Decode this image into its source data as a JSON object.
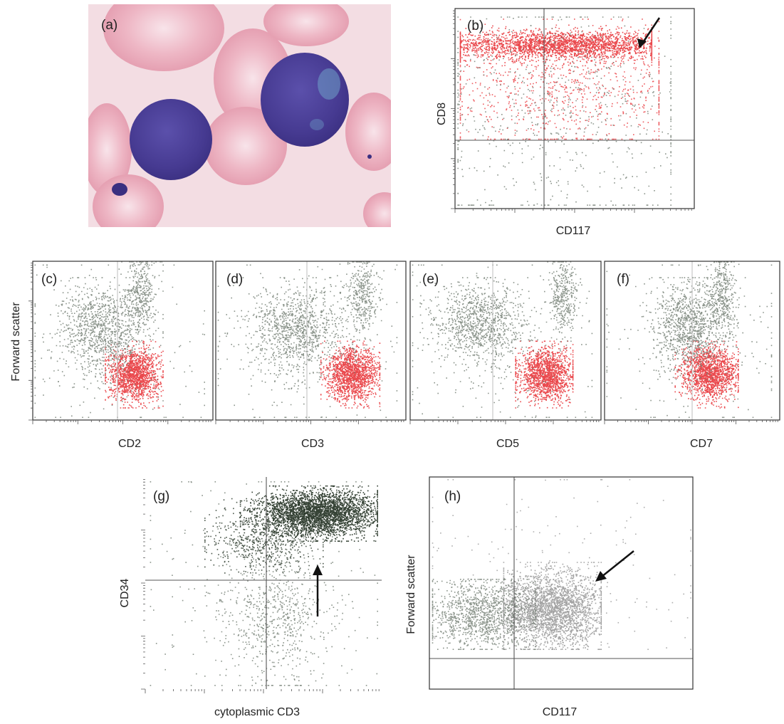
{
  "figure": {
    "colors": {
      "background": "#ffffff",
      "gated_population": "#e8353a",
      "other_events": "#6f7a6f",
      "dark_events": "#1f2e1f",
      "grey_events": "#9a9a9a",
      "frame": "#333333",
      "micrograph_background": "#f3dde3",
      "blast_nucleus": "#4a3f96",
      "red_cell": "#e8a6b5"
    },
    "panels": [
      {
        "id": "a",
        "label": "(a)",
        "kind": "micrograph",
        "chart_data": {
          "type": "image",
          "title": "",
          "content": "peripheral blood smear with two blast cells among red blood cells"
        }
      },
      {
        "id": "b",
        "label": "(b)",
        "kind": "flow",
        "chart_data": {
          "type": "scatter",
          "title": "",
          "xlabel": "CD117",
          "ylabel": "CD8",
          "xscale": "log",
          "yscale": "log",
          "xlim": [
            0,
            1
          ],
          "ylim": [
            0,
            1
          ],
          "gate": {
            "x": 0.42,
            "y": 0.39
          },
          "arrow": true,
          "grid": false,
          "series": [
            {
              "color_key": "gated_population",
              "n": 2600,
              "x_center": 0.45,
              "x_spread": 0.26,
              "y_center": 0.82,
              "y_spread": 0.035,
              "x_range": [
                0.02,
                0.82
              ],
              "y_range": [
                0.72,
                0.92
              ]
            },
            {
              "color_key": "gated_population",
              "n": 900,
              "x_center": 0.45,
              "x_spread": 0.28,
              "y_center": 0.6,
              "y_spread": 0.15,
              "x_range": [
                0.02,
                0.85
              ],
              "y_range": [
                0.35,
                0.95
              ]
            },
            {
              "color_key": "other_events",
              "n": 650,
              "x_center": 0.45,
              "x_spread": 0.3,
              "y_center": 0.45,
              "y_spread": 0.3,
              "x_range": [
                0.01,
                0.9
              ],
              "y_range": [
                0.02,
                0.96
              ]
            }
          ]
        }
      },
      {
        "id": "c",
        "label": "(c)",
        "kind": "flow",
        "chart_data": {
          "type": "scatter",
          "title": "",
          "xlabel": "CD2",
          "ylabel": "Forward scatter",
          "xscale": "log",
          "yscale": "linear",
          "xlim": [
            0,
            1
          ],
          "ylim": [
            0,
            1
          ],
          "gate": {
            "x": 0.47
          },
          "grid": false,
          "series": [
            {
              "color_key": "gated_population",
              "n": 1500,
              "x_center": 0.56,
              "x_spread": 0.07,
              "y_center": 0.29,
              "y_spread": 0.08,
              "x_range": [
                0.4,
                0.72
              ],
              "y_range": [
                0.08,
                0.5
              ]
            },
            {
              "color_key": "other_events",
              "n": 1000,
              "x_center": 0.38,
              "x_spread": 0.11,
              "y_center": 0.57,
              "y_spread": 0.14,
              "x_range": [
                0.05,
                0.72
              ],
              "y_range": [
                0.2,
                0.9
              ]
            },
            {
              "color_key": "other_events",
              "n": 380,
              "x_center": 0.6,
              "x_spread": 0.04,
              "y_center": 0.8,
              "y_spread": 0.13,
              "x_range": [
                0.48,
                0.72
              ],
              "y_range": [
                0.45,
                1.0
              ]
            },
            {
              "color_key": "other_events",
              "n": 220,
              "x_center": 0.4,
              "x_spread": 0.28,
              "y_center": 0.45,
              "y_spread": 0.28,
              "x_range": [
                0.01,
                0.95
              ],
              "y_range": [
                0.02,
                0.98
              ]
            }
          ]
        }
      },
      {
        "id": "d",
        "label": "(d)",
        "kind": "flow",
        "chart_data": {
          "type": "scatter",
          "title": "",
          "xlabel": "CD3",
          "ylabel": "",
          "xscale": "log",
          "yscale": "linear",
          "xlim": [
            0,
            1
          ],
          "ylim": [
            0,
            1
          ],
          "gate": {
            "x": 0.48
          },
          "grid": false,
          "series": [
            {
              "color_key": "gated_population",
              "n": 1500,
              "x_center": 0.72,
              "x_spread": 0.07,
              "y_center": 0.29,
              "y_spread": 0.08,
              "x_range": [
                0.55,
                0.86
              ],
              "y_range": [
                0.08,
                0.5
              ]
            },
            {
              "color_key": "other_events",
              "n": 1000,
              "x_center": 0.43,
              "x_spread": 0.12,
              "y_center": 0.57,
              "y_spread": 0.14,
              "x_range": [
                0.08,
                0.8
              ],
              "y_range": [
                0.2,
                0.9
              ]
            },
            {
              "color_key": "other_events",
              "n": 380,
              "x_center": 0.77,
              "x_spread": 0.04,
              "y_center": 0.8,
              "y_spread": 0.13,
              "x_range": [
                0.65,
                0.9
              ],
              "y_range": [
                0.45,
                1.0
              ]
            },
            {
              "color_key": "other_events",
              "n": 220,
              "x_center": 0.45,
              "x_spread": 0.28,
              "y_center": 0.45,
              "y_spread": 0.28,
              "x_range": [
                0.01,
                0.95
              ],
              "y_range": [
                0.02,
                0.98
              ]
            }
          ]
        }
      },
      {
        "id": "e",
        "label": "(e)",
        "kind": "flow",
        "chart_data": {
          "type": "scatter",
          "title": "",
          "xlabel": "CD5",
          "ylabel": "",
          "xscale": "log",
          "yscale": "linear",
          "xlim": [
            0,
            1
          ],
          "ylim": [
            0,
            1
          ],
          "gate": {
            "x": 0.43
          },
          "grid": false,
          "series": [
            {
              "color_key": "gated_population",
              "n": 1500,
              "x_center": 0.71,
              "x_spread": 0.07,
              "y_center": 0.29,
              "y_spread": 0.08,
              "x_range": [
                0.55,
                0.85
              ],
              "y_range": [
                0.08,
                0.5
              ]
            },
            {
              "color_key": "other_events",
              "n": 1000,
              "x_center": 0.36,
              "x_spread": 0.12,
              "y_center": 0.6,
              "y_spread": 0.13,
              "x_range": [
                0.05,
                0.75
              ],
              "y_range": [
                0.2,
                0.9
              ]
            },
            {
              "color_key": "other_events",
              "n": 380,
              "x_center": 0.8,
              "x_spread": 0.04,
              "y_center": 0.78,
              "y_spread": 0.13,
              "x_range": [
                0.68,
                0.92
              ],
              "y_range": [
                0.45,
                1.0
              ]
            },
            {
              "color_key": "other_events",
              "n": 220,
              "x_center": 0.45,
              "x_spread": 0.28,
              "y_center": 0.45,
              "y_spread": 0.28,
              "x_range": [
                0.01,
                0.95
              ],
              "y_range": [
                0.02,
                0.98
              ]
            }
          ]
        }
      },
      {
        "id": "f",
        "label": "(f)",
        "kind": "flow",
        "chart_data": {
          "type": "scatter",
          "title": "",
          "xlabel": "CD7",
          "ylabel": "",
          "xscale": "log",
          "yscale": "linear",
          "xlim": [
            0,
            1
          ],
          "ylim": [
            0,
            1
          ],
          "gate": {
            "x": 0.5
          },
          "grid": false,
          "series": [
            {
              "color_key": "gated_population",
              "n": 1500,
              "x_center": 0.6,
              "x_spread": 0.08,
              "y_center": 0.3,
              "y_spread": 0.08,
              "x_range": [
                0.4,
                0.76
              ],
              "y_range": [
                0.08,
                0.5
              ]
            },
            {
              "color_key": "other_events",
              "n": 1000,
              "x_center": 0.48,
              "x_spread": 0.1,
              "y_center": 0.6,
              "y_spread": 0.14,
              "x_range": [
                0.2,
                0.8
              ],
              "y_range": [
                0.2,
                0.9
              ]
            },
            {
              "color_key": "other_events",
              "n": 380,
              "x_center": 0.67,
              "x_spread": 0.04,
              "y_center": 0.8,
              "y_spread": 0.13,
              "x_range": [
                0.55,
                0.8
              ],
              "y_range": [
                0.45,
                1.0
              ]
            },
            {
              "color_key": "other_events",
              "n": 220,
              "x_center": 0.5,
              "x_spread": 0.28,
              "y_center": 0.45,
              "y_spread": 0.28,
              "x_range": [
                0.01,
                0.95
              ],
              "y_range": [
                0.02,
                0.98
              ]
            }
          ]
        }
      },
      {
        "id": "g",
        "label": "(g)",
        "kind": "flow",
        "chart_data": {
          "type": "scatter",
          "title": "",
          "xlabel": "cytoplasmic CD3",
          "ylabel": "CD34",
          "xscale": "log",
          "yscale": "log",
          "xlim": [
            0,
            1
          ],
          "ylim": [
            0,
            1
          ],
          "gate": {
            "x": 0.54,
            "y": 0.48
          },
          "arrow": true,
          "grid": false,
          "series": [
            {
              "color_key": "dark_events",
              "n": 3200,
              "x_center": 0.73,
              "x_spread": 0.12,
              "y_center": 0.83,
              "y_spread": 0.055,
              "x_range": [
                0.4,
                0.98
              ],
              "y_range": [
                0.7,
                0.96
              ]
            },
            {
              "color_key": "dark_events",
              "n": 700,
              "x_center": 0.5,
              "x_spread": 0.12,
              "y_center": 0.72,
              "y_spread": 0.08,
              "x_range": [
                0.25,
                0.75
              ],
              "y_range": [
                0.55,
                0.9
              ]
            },
            {
              "color_key": "other_events",
              "n": 650,
              "x_center": 0.55,
              "x_spread": 0.12,
              "y_center": 0.35,
              "y_spread": 0.16,
              "x_range": [
                0.25,
                0.98
              ],
              "y_range": [
                0.02,
                0.7
              ]
            },
            {
              "color_key": "other_events",
              "n": 250,
              "x_center": 0.5,
              "x_spread": 0.25,
              "y_center": 0.5,
              "y_spread": 0.3,
              "x_range": [
                0.02,
                0.98
              ],
              "y_range": [
                0.02,
                0.98
              ]
            }
          ]
        }
      },
      {
        "id": "h",
        "label": "(h)",
        "kind": "flow",
        "chart_data": {
          "type": "scatter",
          "title": "",
          "xlabel": "CD117",
          "ylabel": "Forward scatter",
          "xscale": "log",
          "yscale": "linear",
          "xlim": [
            0,
            1
          ],
          "ylim": [
            0,
            1
          ],
          "gate": {
            "x": 0.32,
            "y": 0.19
          },
          "arrow": true,
          "grid": false,
          "series": [
            {
              "color_key": "grey_events",
              "n": 2600,
              "x_center": 0.46,
              "x_spread": 0.1,
              "y_center": 0.38,
              "y_spread": 0.09,
              "x_range": [
                0.28,
                0.65
              ],
              "y_range": [
                0.19,
                0.6
              ]
            },
            {
              "color_key": "other_events",
              "n": 1200,
              "x_center": 0.2,
              "x_spread": 0.1,
              "y_center": 0.35,
              "y_spread": 0.08,
              "x_range": [
                0.01,
                0.4
              ],
              "y_range": [
                0.19,
                0.52
              ]
            },
            {
              "color_key": "grey_events",
              "n": 200,
              "x_center": 0.5,
              "x_spread": 0.3,
              "y_center": 0.5,
              "y_spread": 0.25,
              "x_range": [
                0.01,
                0.99
              ],
              "y_range": [
                0.19,
                0.99
              ]
            }
          ]
        }
      }
    ]
  }
}
